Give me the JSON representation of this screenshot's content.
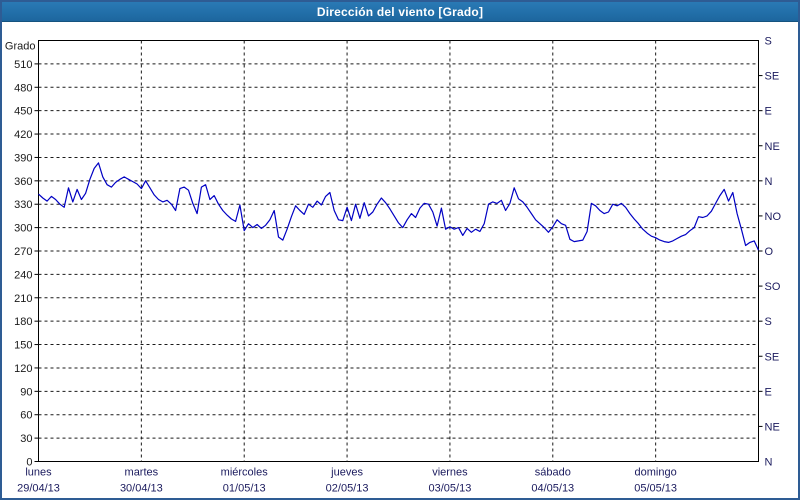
{
  "window": {
    "title": "Dirección del viento [Grado]"
  },
  "colors": {
    "frame_border": "#2e5c94",
    "titlebar_bg_top": "#2a7ab5",
    "titlebar_bg_bottom": "#1d669e",
    "titlebar_text": "#ffffff",
    "plot_bg": "#ffffff",
    "grid": "#1a1a1a",
    "axis": "#000000",
    "left_tick_text": "#1a1a1a",
    "right_tick_text": "#1b1b5e",
    "day_label_text": "#1b1b5e",
    "series_line": "#0000c3"
  },
  "chart_data": {
    "type": "line",
    "title": "Dirección del viento [Grado]",
    "y_left_label": "Grado",
    "ylim": [
      0,
      540
    ],
    "y_left_ticks": [
      0,
      30,
      60,
      90,
      120,
      150,
      180,
      210,
      240,
      270,
      300,
      330,
      360,
      390,
      420,
      450,
      480,
      510
    ],
    "y_right_ticks": [
      {
        "deg": 0,
        "label": "N"
      },
      {
        "deg": 45,
        "label": "NE"
      },
      {
        "deg": 90,
        "label": "E"
      },
      {
        "deg": 135,
        "label": "SE"
      },
      {
        "deg": 180,
        "label": "S"
      },
      {
        "deg": 225,
        "label": "SO"
      },
      {
        "deg": 270,
        "label": "O"
      },
      {
        "deg": 315,
        "label": "NO"
      },
      {
        "deg": 360,
        "label": "N"
      },
      {
        "deg": 405,
        "label": "NE"
      },
      {
        "deg": 450,
        "label": "E"
      },
      {
        "deg": 495,
        "label": "SE"
      },
      {
        "deg": 540,
        "label": "S"
      }
    ],
    "x_days": [
      {
        "name": "lunes",
        "date": "29/04/13"
      },
      {
        "name": "martes",
        "date": "30/04/13"
      },
      {
        "name": "miércoles",
        "date": "01/05/13"
      },
      {
        "name": "jueves",
        "date": "02/05/13"
      },
      {
        "name": "viernes",
        "date": "03/05/13"
      },
      {
        "name": "sábado",
        "date": "04/05/13"
      },
      {
        "name": "domingo",
        "date": "05/05/13"
      }
    ],
    "grid": "dashed",
    "legend": "none",
    "series": [
      {
        "name": "Dirección del viento (Grado)",
        "sampling": "hourly",
        "values": [
          343,
          338,
          334,
          340,
          336,
          330,
          326,
          351,
          333,
          349,
          336,
          344,
          362,
          376,
          383,
          365,
          355,
          352,
          358,
          362,
          365,
          362,
          359,
          356,
          350,
          360,
          351,
          342,
          336,
          333,
          335,
          330,
          322,
          350,
          352,
          348,
          331,
          318,
          352,
          355,
          336,
          341,
          330,
          322,
          316,
          311,
          308,
          329,
          296,
          305,
          300,
          304,
          299,
          303,
          310,
          322,
          288,
          284,
          298,
          314,
          328,
          322,
          317,
          330,
          326,
          334,
          329,
          340,
          345,
          322,
          310,
          309,
          326,
          309,
          330,
          312,
          332,
          315,
          320,
          330,
          338,
          332,
          324,
          315,
          306,
          300,
          310,
          318,
          313,
          325,
          331,
          330,
          320,
          302,
          325,
          298,
          301,
          298,
          300,
          290,
          299,
          294,
          298,
          295,
          305,
          330,
          333,
          331,
          335,
          322,
          331,
          351,
          337,
          333,
          326,
          318,
          310,
          305,
          300,
          294,
          301,
          310,
          305,
          303,
          285,
          282,
          283,
          284,
          295,
          331,
          328,
          322,
          318,
          320,
          330,
          328,
          331,
          326,
          318,
          311,
          305,
          298,
          293,
          289,
          287,
          284,
          282,
          281,
          283,
          286,
          289,
          291,
          296,
          300,
          314,
          313,
          315,
          321,
          331,
          341,
          349,
          334,
          345,
          318,
          298,
          277,
          281,
          283,
          271
        ]
      }
    ]
  }
}
